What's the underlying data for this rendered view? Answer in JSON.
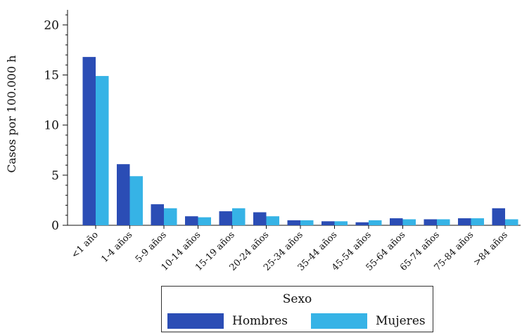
{
  "chart_data": {
    "type": "bar",
    "title": "",
    "xlabel": "",
    "ylabel": "Casos por 100.000 h",
    "ylim": [
      0,
      21.5
    ],
    "yticks": [
      0,
      5,
      10,
      15,
      20
    ],
    "categories": [
      "<1 año",
      "1-4 años",
      "5-9 años",
      "10-14 años",
      "15-19 años",
      "20-24 años",
      "25-34 años",
      "35-44 años",
      "45-54 años",
      "55-64 años",
      "65-74 años",
      "75-84 años",
      ">84 años"
    ],
    "series": [
      {
        "name": "Hombres",
        "color": "#2b4db5",
        "values": [
          16.8,
          6.1,
          2.1,
          0.9,
          1.4,
          1.3,
          0.5,
          0.4,
          0.3,
          0.7,
          0.6,
          0.7,
          1.7
        ]
      },
      {
        "name": "Mujeres",
        "color": "#36b3e6",
        "values": [
          14.9,
          4.9,
          1.7,
          0.8,
          1.7,
          0.9,
          0.5,
          0.4,
          0.5,
          0.6,
          0.6,
          0.7,
          0.6
        ]
      }
    ],
    "legend": {
      "title": "Sexo",
      "placement": "bottom"
    },
    "grid": false
  }
}
